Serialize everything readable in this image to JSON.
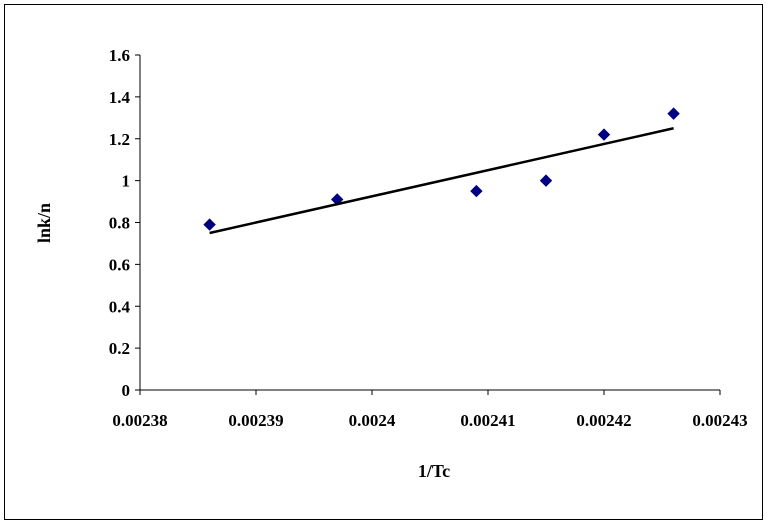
{
  "chart_data": {
    "type": "scatter",
    "xlabel": "1/Tc",
    "ylabel": "lnk/n",
    "xlim": [
      0.00238,
      0.00243
    ],
    "ylim": [
      0,
      1.6
    ],
    "x_ticks": [
      "0.00238",
      "0.00239",
      "0.0024",
      "0.00241",
      "0.00242",
      "0.00243"
    ],
    "x_tick_values": [
      0.00238,
      0.00239,
      0.0024,
      0.00241,
      0.00242,
      0.00243
    ],
    "y_ticks": [
      "0",
      "0.2",
      "0.4",
      "0.6",
      "0.8",
      "1",
      "1.2",
      "1.4",
      "1.6"
    ],
    "y_tick_values": [
      0,
      0.2,
      0.4,
      0.6,
      0.8,
      1.0,
      1.2,
      1.4,
      1.6
    ],
    "grid": false,
    "legend": "none",
    "series": [
      {
        "type": "scatter",
        "marker": "diamond",
        "color": "#000080",
        "x": [
          0.002386,
          0.002397,
          0.002409,
          0.002415,
          0.00242,
          0.002426
        ],
        "y": [
          0.79,
          0.91,
          0.95,
          1.0,
          1.22,
          1.32
        ]
      },
      {
        "type": "line",
        "color": "#000000",
        "x": [
          0.002386,
          0.002426
        ],
        "y": [
          0.75,
          1.25
        ]
      }
    ]
  }
}
